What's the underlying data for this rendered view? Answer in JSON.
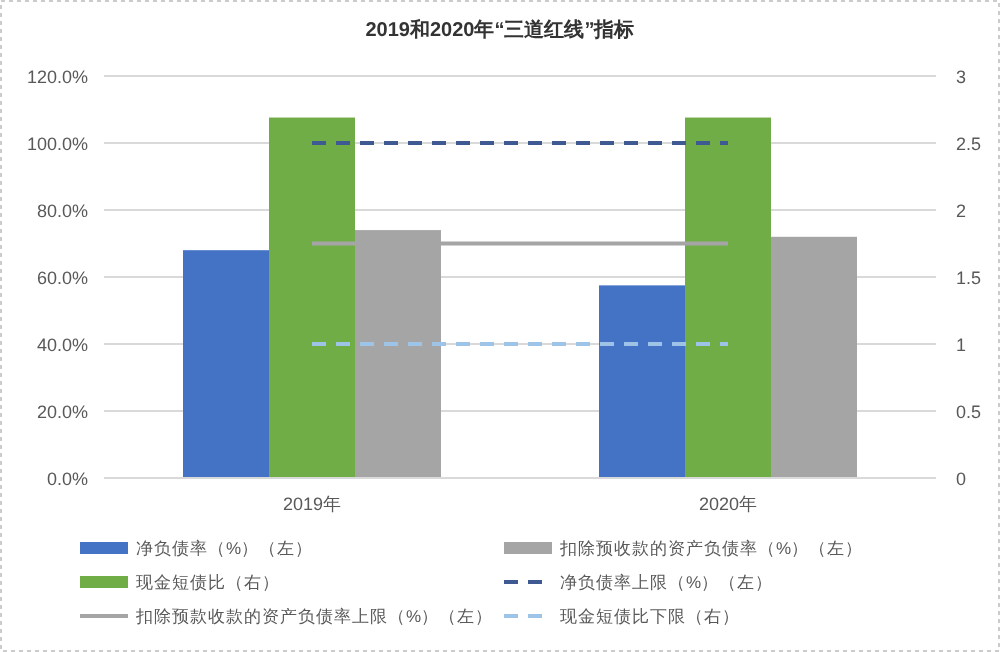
{
  "chart_data": {
    "type": "bar",
    "title": "2019和2020年“三道红线”指标",
    "categories": [
      "2019年",
      "2020年"
    ],
    "series": [
      {
        "name": "净负债率（%）（左）",
        "color": "#4472c4",
        "values": [
          68,
          57.5
        ]
      },
      {
        "name": "现金短债比（右）",
        "axis": "y2",
        "color": "#70ad47",
        "values": [
          2.69,
          2.69
        ]
      },
      {
        "name": "扣除预款收款的资产负债率上限（%）（左）",
        "type": "line",
        "line_style": "solid",
        "color": "#a5a5a5",
        "values": [
          70,
          70
        ]
      },
      {
        "name": "扣除预收款的资产负债率（%）（左）",
        "color": "#a5a5a5",
        "values": [
          74,
          72
        ]
      },
      {
        "name": "净负债率上限（%）（左）",
        "type": "line",
        "line_style": "dashed",
        "color": "#3f5a93",
        "values": [
          100,
          100
        ]
      },
      {
        "name": "现金短债比下限（右）",
        "type": "line",
        "axis": "y2",
        "line_style": "dashed",
        "color": "#9dc3e6",
        "values": [
          1,
          1
        ]
      }
    ],
    "ylim": [
      0,
      120
    ],
    "yticks": [
      {
        "value": 0,
        "label": "0.0%"
      },
      {
        "value": 20,
        "label": "20.0%"
      },
      {
        "value": 40,
        "label": "40.0%"
      },
      {
        "value": 60,
        "label": "60.0%"
      },
      {
        "value": 80,
        "label": "80.0%"
      },
      {
        "value": 100,
        "label": "100.0%"
      },
      {
        "value": 120,
        "label": "120.0%"
      }
    ],
    "y2lim": [
      0,
      3
    ],
    "y2ticks": [
      0,
      0.5,
      1,
      1.5,
      2,
      2.5,
      3
    ],
    "grid": "y",
    "legend": "bottom"
  }
}
